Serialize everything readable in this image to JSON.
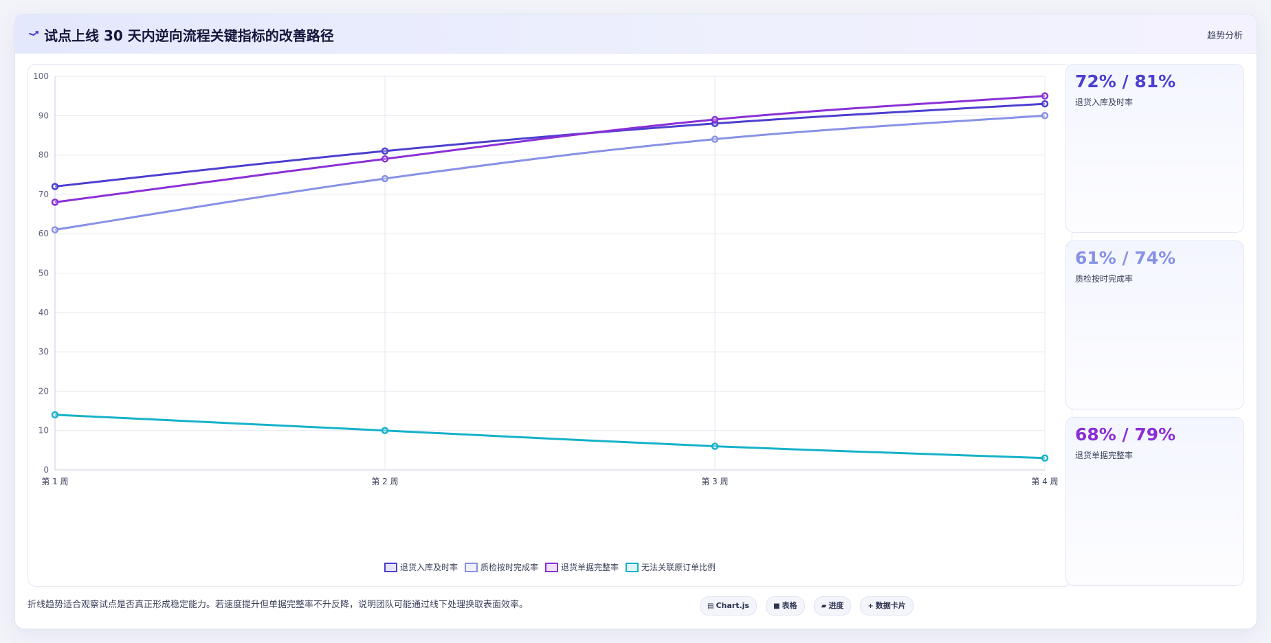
{
  "header": {
    "icon": "trend-line-icon",
    "title": "试点上线 30 天内逆向流程关键指标的改善路径",
    "tag": "趋势分析"
  },
  "chart_data": {
    "type": "line",
    "title": "",
    "xlabel": "",
    "ylabel": "",
    "categories": [
      "第 1 周",
      "第 2 周",
      "第 3 周",
      "第 4 周"
    ],
    "ylim": [
      0,
      100
    ],
    "yticks": [
      0,
      10,
      20,
      30,
      40,
      50,
      60,
      70,
      80,
      90,
      100
    ],
    "grid": true,
    "legend_position": "bottom",
    "series": [
      {
        "name": "退货入库及时率",
        "values": [
          72,
          81,
          88,
          93
        ],
        "color": "#4b3fcf"
      },
      {
        "name": "质检按时完成率",
        "values": [
          61,
          74,
          84,
          90
        ],
        "color": "#8791e6"
      },
      {
        "name": "退货单据完整率",
        "values": [
          68,
          79,
          89,
          95
        ],
        "color": "#8a2fd6"
      },
      {
        "name": "无法关联原订单比例",
        "values": [
          14,
          10,
          6,
          3
        ],
        "color": "#15b1c9"
      }
    ]
  },
  "stats": [
    {
      "value": "72% / 81%",
      "label": "退货入库及时率",
      "color": "#4b3fcf"
    },
    {
      "value": "61% / 74%",
      "label": "质检按时完成率",
      "color": "#8791e6"
    },
    {
      "value": "68% / 79%",
      "label": "退货单据完整率",
      "color": "#8a2fd6"
    }
  ],
  "footer": {
    "note": "折线趋势适合观察试点是否真正形成稳定能力。若速度提升但单据完整率不升反降，说明团队可能通过线下处理换取表面效率。",
    "tags": [
      {
        "icon": "▤",
        "icon_name": "chart-icon",
        "label": "Chart.js"
      },
      {
        "icon": "■",
        "icon_name": "table-icon",
        "label": "表格"
      },
      {
        "icon": "▰",
        "icon_name": "progress-icon",
        "label": "进度"
      },
      {
        "icon": "+",
        "icon_name": "plus-icon",
        "label": "数据卡片"
      }
    ]
  }
}
